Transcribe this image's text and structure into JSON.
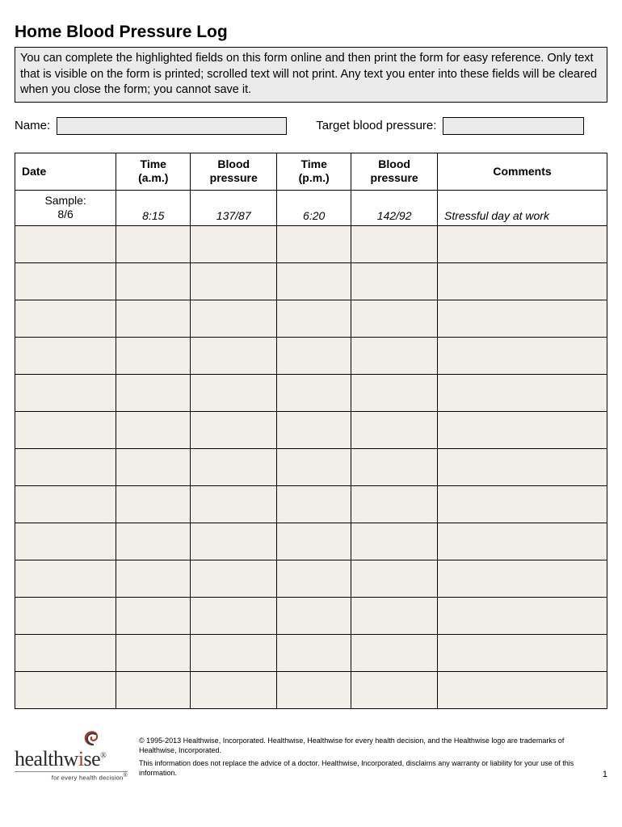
{
  "title": "Home Blood Pressure Log",
  "instructions": "You can complete the highlighted fields on this form online and then print the form for easy reference. Only text that is visible on the form is printed; scrolled text will not print. Any text you enter into these fields will be cleared when you close the form; you cannot save it.",
  "form": {
    "name_label": "Name:",
    "target_label": "Target blood pressure:"
  },
  "table": {
    "columns": [
      "Date",
      "Time\n(a.m.)",
      "Blood\npressure",
      "Time\n(p.m.)",
      "Blood\npressure",
      "Comments"
    ],
    "sample": {
      "date": "Sample:\n8/6",
      "time_am": "8:15",
      "bp_am": "137/87",
      "time_pm": "6:20",
      "bp_pm": "142/92",
      "comments": "Stressful day at work"
    },
    "blank_row_count": 13,
    "blank_bg": "#f2efe8",
    "border_color": "#000000"
  },
  "footer": {
    "logo_text": "healthwise",
    "logo_tagline": "for every health decision",
    "copyright": "© 1995-2013 Healthwise, Incorporated. Healthwise, Healthwise for every health decision, and the Healthwise logo are trademarks of Healthwise, Incorporated.",
    "disclaimer": "This information does not replace the advice of a doctor. Healthwise, Incorporated, disclaims any warranty or liability for your use of this information.",
    "page_number": "1"
  },
  "colors": {
    "page_bg": "#ffffff",
    "highlight_bg": "#ebebeb",
    "blank_row_bg": "#f2efe8",
    "text": "#000000",
    "logo_accent": "#a83a2a"
  }
}
